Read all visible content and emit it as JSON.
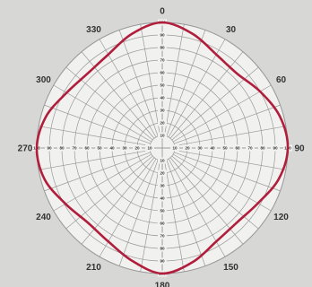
{
  "chart_data": {
    "type": "polar-line",
    "title": "",
    "angle_labels": [
      "0",
      "30",
      "60",
      "90",
      "120",
      "150",
      "180",
      "210",
      "240",
      "270",
      "300",
      "330"
    ],
    "radial_ticks": [
      "10",
      "20",
      "30",
      "40",
      "50",
      "60",
      "70",
      "80",
      "90",
      "100"
    ],
    "rlim": [
      0,
      100
    ],
    "grid": true,
    "series": [
      {
        "color": "#b01e3c",
        "theta": [
          0,
          15,
          30,
          45,
          60,
          75,
          90,
          105,
          120,
          135,
          150,
          165,
          180,
          195,
          210,
          225,
          240,
          255,
          270,
          285,
          300,
          315,
          330,
          345
        ],
        "r": [
          100,
          94,
          86,
          84,
          90,
          97,
          100,
          96,
          88,
          84,
          86,
          94,
          100,
          93,
          86,
          84,
          89,
          97,
          100,
          96,
          88,
          84,
          86,
          94
        ]
      }
    ]
  },
  "colors": {
    "background": "#d7d7d5",
    "plot_face": "#f1f1ef",
    "grid": "#9a9a9a",
    "curve": "#b01e3c"
  }
}
